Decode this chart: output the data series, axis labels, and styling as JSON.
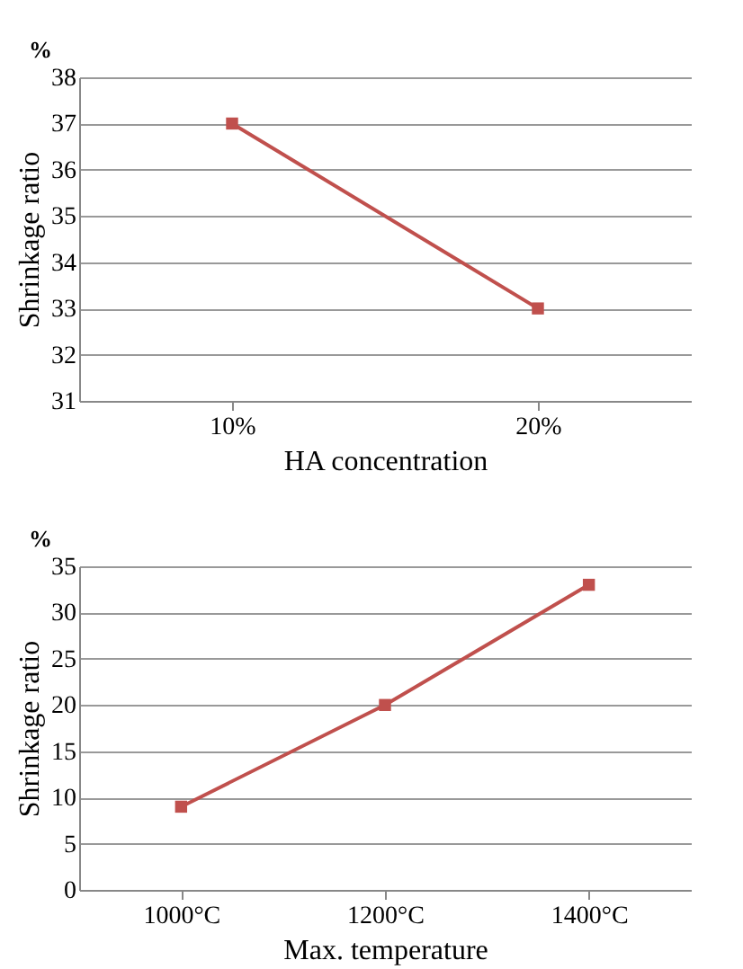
{
  "chart_data": [
    {
      "type": "line",
      "categories": [
        "10%",
        "20%"
      ],
      "series": [
        {
          "color": "#c0504d",
          "values": [
            37,
            33
          ]
        }
      ],
      "ylim": [
        31,
        38
      ],
      "yticks": [
        31,
        32,
        33,
        34,
        35,
        36,
        37,
        38
      ],
      "ylabel": "Shrinkage ratio",
      "xlabel": "HA concentration",
      "annotations": [
        "%"
      ],
      "grid": "y",
      "marker": "square",
      "line_style": "solid"
    },
    {
      "type": "line",
      "categories": [
        "1000°C",
        "1200°C",
        "1400°C"
      ],
      "series": [
        {
          "color": "#c0504d",
          "values": [
            9,
            20,
            33
          ]
        }
      ],
      "ylim": [
        0,
        35
      ],
      "yticks": [
        0,
        5,
        10,
        15,
        20,
        25,
        30,
        35
      ],
      "ylabel": "Shrinkage ratio",
      "xlabel": "Max. temperature",
      "annotations": [
        "%"
      ],
      "grid": "y",
      "marker": "square",
      "line_style": "solid"
    }
  ]
}
